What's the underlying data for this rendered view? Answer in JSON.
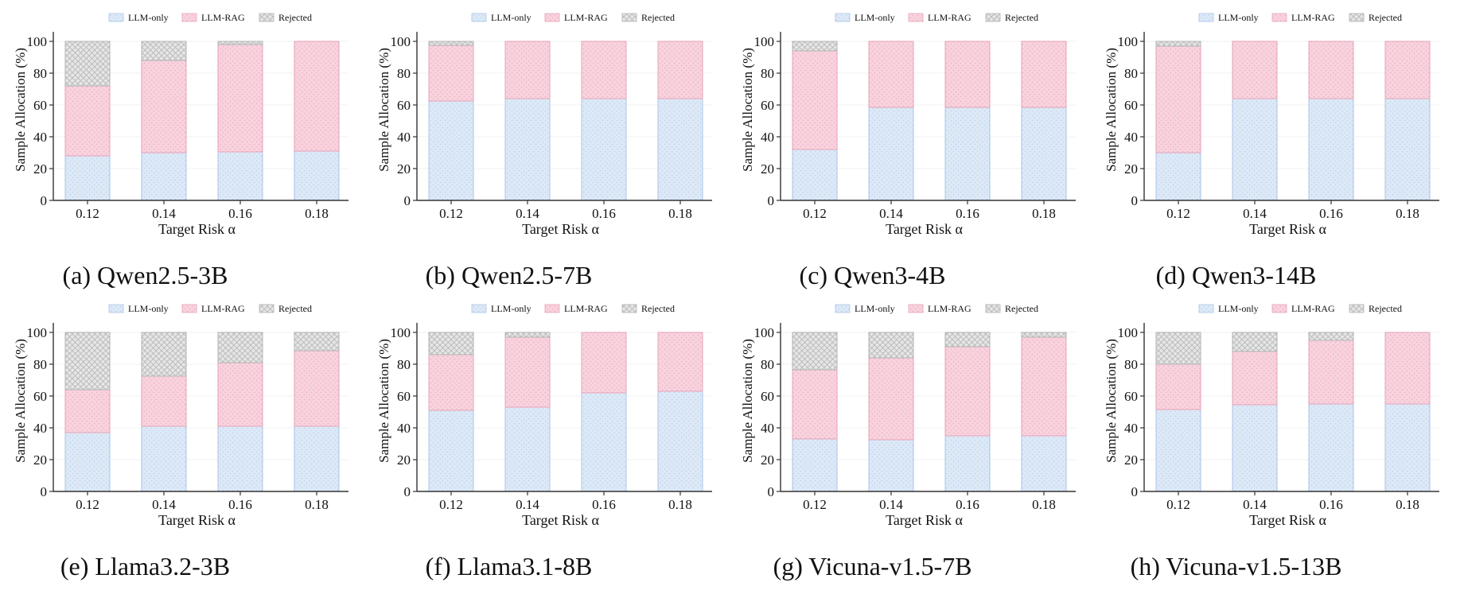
{
  "legend_labels": [
    "LLM-only",
    "LLM-RAG",
    "Rejected"
  ],
  "colors": {
    "llm_only_fill": "#dde9f7",
    "llm_only_stroke": "#a9c4e6",
    "llm_only_dot": "#bcd1ec",
    "llm_rag_fill": "#f8d3de",
    "llm_rag_stroke": "#e6a3b7",
    "llm_rag_dot": "#eeb3c5",
    "rejected_fill": "#e6e6e6",
    "rejected_stroke": "#b3b3b3",
    "rejected_hatch": "#b8b8b8",
    "axis": "#333333",
    "grid": "#f0f0f0",
    "text": "#111111"
  },
  "chart_data": [
    {
      "type": "bar",
      "stacked": true,
      "caption": "(a) Qwen2.5-3B",
      "xlabel": "Target Risk α",
      "ylabel": "Sample Allocation (%)",
      "categories": [
        "0.12",
        "0.14",
        "0.16",
        "0.18"
      ],
      "ylim": [
        0,
        100
      ],
      "yticks": [
        0,
        20,
        40,
        60,
        80,
        100
      ],
      "legend_position": "top-center",
      "series": [
        {
          "name": "LLM-only",
          "values": [
            28,
            30,
            30.5,
            31
          ]
        },
        {
          "name": "LLM-RAG",
          "values": [
            44,
            58,
            67.5,
            69
          ]
        },
        {
          "name": "Rejected",
          "values": [
            28,
            12,
            2,
            0
          ]
        }
      ]
    },
    {
      "type": "bar",
      "stacked": true,
      "caption": "(b) Qwen2.5-7B",
      "xlabel": "Target Risk α",
      "ylabel": "Sample Allocation (%)",
      "categories": [
        "0.12",
        "0.14",
        "0.16",
        "0.18"
      ],
      "ylim": [
        0,
        100
      ],
      "yticks": [
        0,
        20,
        40,
        60,
        80,
        100
      ],
      "legend_position": "top-center",
      "series": [
        {
          "name": "LLM-only",
          "values": [
            62.5,
            64,
            64,
            64
          ]
        },
        {
          "name": "LLM-RAG",
          "values": [
            35,
            36,
            36,
            36
          ]
        },
        {
          "name": "Rejected",
          "values": [
            2.5,
            0,
            0,
            0
          ]
        }
      ]
    },
    {
      "type": "bar",
      "stacked": true,
      "caption": "(c) Qwen3-4B",
      "xlabel": "Target Risk α",
      "ylabel": "Sample Allocation (%)",
      "categories": [
        "0.12",
        "0.14",
        "0.16",
        "0.18"
      ],
      "ylim": [
        0,
        100
      ],
      "yticks": [
        0,
        20,
        40,
        60,
        80,
        100
      ],
      "legend_position": "top-center",
      "series": [
        {
          "name": "LLM-only",
          "values": [
            32,
            58.5,
            58.5,
            58.5
          ]
        },
        {
          "name": "LLM-RAG",
          "values": [
            62,
            41.5,
            41.5,
            41.5
          ]
        },
        {
          "name": "Rejected",
          "values": [
            6,
            0,
            0,
            0
          ]
        }
      ]
    },
    {
      "type": "bar",
      "stacked": true,
      "caption": "(d) Qwen3-14B",
      "xlabel": "Target Risk α",
      "ylabel": "Sample Allocation (%)",
      "categories": [
        "0.12",
        "0.14",
        "0.16",
        "0.18"
      ],
      "ylim": [
        0,
        100
      ],
      "yticks": [
        0,
        20,
        40,
        60,
        80,
        100
      ],
      "legend_position": "top-center",
      "series": [
        {
          "name": "LLM-only",
          "values": [
            30,
            64,
            64,
            64
          ]
        },
        {
          "name": "LLM-RAG",
          "values": [
            67,
            36,
            36,
            36
          ]
        },
        {
          "name": "Rejected",
          "values": [
            3,
            0,
            0,
            0
          ]
        }
      ]
    },
    {
      "type": "bar",
      "stacked": true,
      "caption": "(e) Llama3.2-3B",
      "xlabel": "Target Risk α",
      "ylabel": "Sample Allocation (%)",
      "categories": [
        "0.12",
        "0.14",
        "0.16",
        "0.18"
      ],
      "ylim": [
        0,
        100
      ],
      "yticks": [
        0,
        20,
        40,
        60,
        80,
        100
      ],
      "legend_position": "top-center",
      "series": [
        {
          "name": "LLM-only",
          "values": [
            37,
            41,
            41,
            41
          ]
        },
        {
          "name": "LLM-RAG",
          "values": [
            27,
            31.5,
            40,
            47.5
          ]
        },
        {
          "name": "Rejected",
          "values": [
            36,
            27.5,
            19,
            11.5
          ]
        }
      ]
    },
    {
      "type": "bar",
      "stacked": true,
      "caption": "(f) Llama3.1-8B",
      "xlabel": "Target Risk α",
      "ylabel": "Sample Allocation (%)",
      "categories": [
        "0.12",
        "0.14",
        "0.16",
        "0.18"
      ],
      "ylim": [
        0,
        100
      ],
      "yticks": [
        0,
        20,
        40,
        60,
        80,
        100
      ],
      "legend_position": "top-center",
      "series": [
        {
          "name": "LLM-only",
          "values": [
            51,
            53,
            62,
            63
          ]
        },
        {
          "name": "LLM-RAG",
          "values": [
            35,
            44,
            38,
            37
          ]
        },
        {
          "name": "Rejected",
          "values": [
            14,
            3,
            0,
            0
          ]
        }
      ]
    },
    {
      "type": "bar",
      "stacked": true,
      "caption": "(g) Vicuna-v1.5-7B",
      "xlabel": "Target Risk α",
      "ylabel": "Sample Allocation (%)",
      "categories": [
        "0.12",
        "0.14",
        "0.16",
        "0.18"
      ],
      "ylim": [
        0,
        100
      ],
      "yticks": [
        0,
        20,
        40,
        60,
        80,
        100
      ],
      "legend_position": "top-center",
      "series": [
        {
          "name": "LLM-only",
          "values": [
            33,
            32.5,
            35,
            35
          ]
        },
        {
          "name": "LLM-RAG",
          "values": [
            43.5,
            51.5,
            56,
            62
          ]
        },
        {
          "name": "Rejected",
          "values": [
            23.5,
            16,
            9,
            3
          ]
        }
      ]
    },
    {
      "type": "bar",
      "stacked": true,
      "caption": "(h) Vicuna-v1.5-13B",
      "xlabel": "Target Risk α",
      "ylabel": "Sample Allocation (%)",
      "categories": [
        "0.12",
        "0.14",
        "0.16",
        "0.18"
      ],
      "ylim": [
        0,
        100
      ],
      "yticks": [
        0,
        20,
        40,
        60,
        80,
        100
      ],
      "legend_position": "top-center",
      "series": [
        {
          "name": "LLM-only",
          "values": [
            51.5,
            54.5,
            55,
            55
          ]
        },
        {
          "name": "LLM-RAG",
          "values": [
            28.5,
            33.5,
            40,
            45
          ]
        },
        {
          "name": "Rejected",
          "values": [
            20,
            12,
            5,
            0
          ]
        }
      ]
    }
  ]
}
